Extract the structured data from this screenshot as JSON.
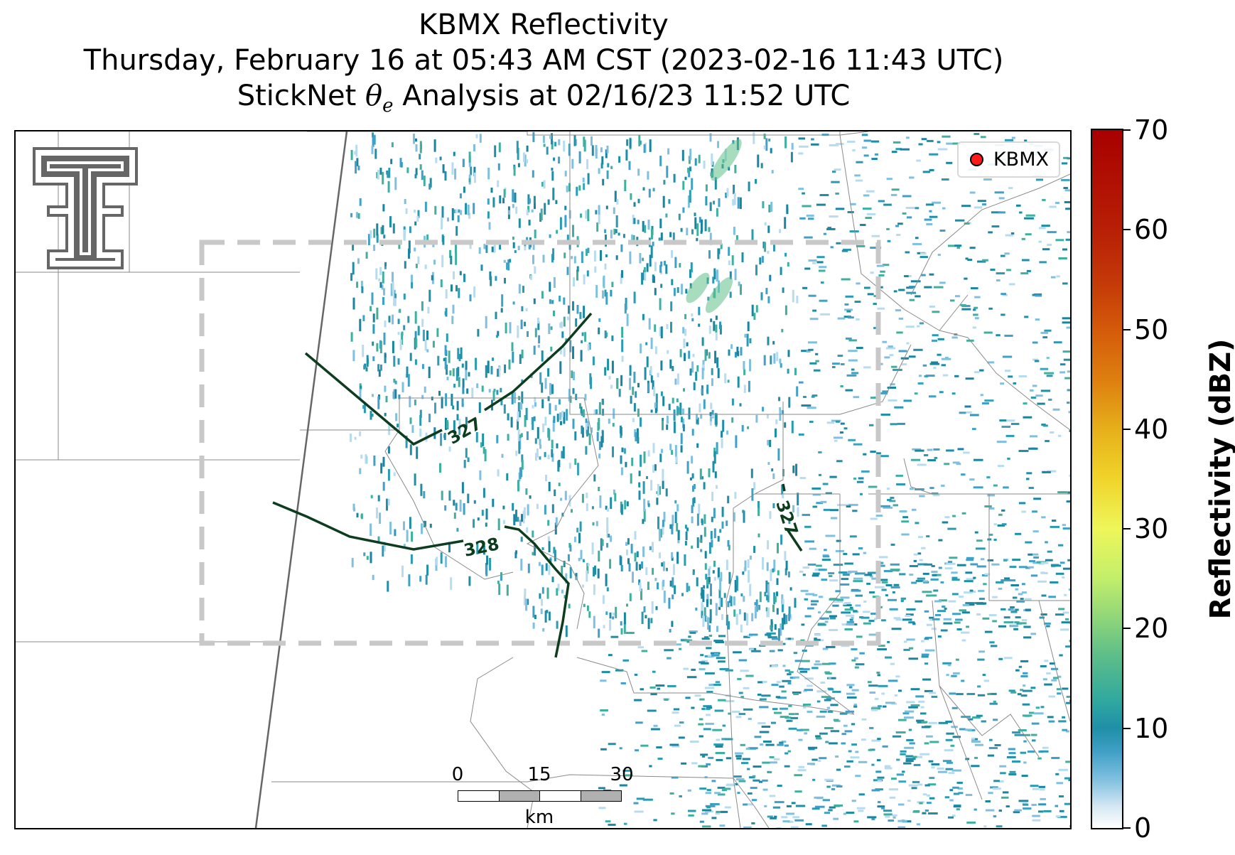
{
  "title": {
    "line1": "KBMX Reflectivity",
    "line2": "Thursday, February 16 at 05:43 AM CST (2023-02-16 11:43 UTC)",
    "line3_prefix": "StickNet ",
    "line3_symbol": "θ",
    "line3_sub": "e",
    "line3_suffix": " Analysis at 02/16/23 11:52 UTC"
  },
  "legend": {
    "label": "KBMX",
    "marker_color": "#ff1a1a"
  },
  "logo": {
    "icon": "texas-tech-double-t-logo-icon",
    "color": "#666666"
  },
  "scale_bar": {
    "ticks": [
      "0",
      "15",
      "30"
    ],
    "unit": "km"
  },
  "contours": [
    {
      "label": "327",
      "color": "#0d3d1f"
    },
    {
      "label": "328",
      "color": "#0d3d1f"
    },
    {
      "label": "327",
      "color": "#0d3d1f"
    }
  ],
  "analysis_box": {
    "style": "dashed",
    "color": "#c8c8c8"
  },
  "colorbar": {
    "title": "Reflectivity (dBZ)",
    "ticks": [
      "0",
      "10",
      "20",
      "30",
      "40",
      "50",
      "60",
      "70"
    ],
    "min": 0,
    "max": 70
  }
}
